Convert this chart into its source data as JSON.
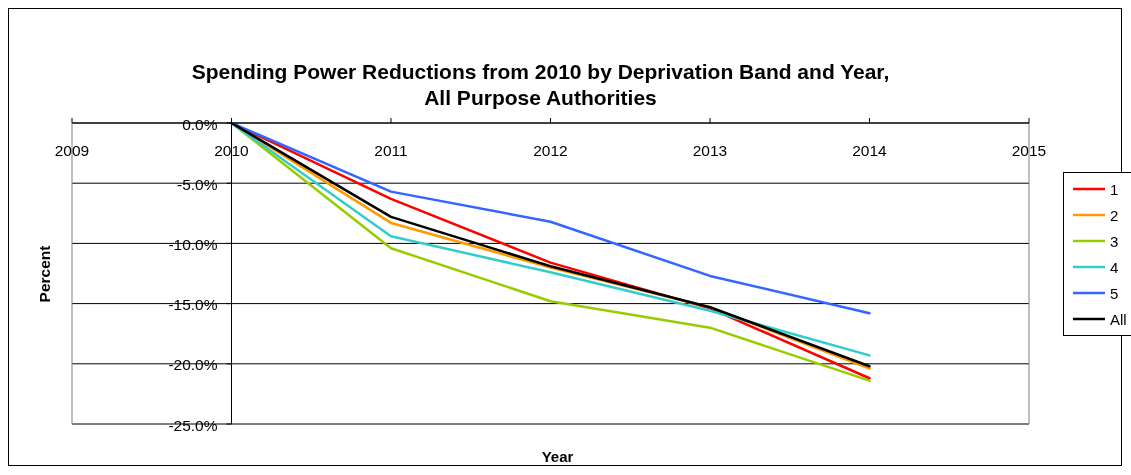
{
  "chart_data": {
    "type": "line",
    "title": "Spending Power Reductions from 2010 by Deprivation Band and Year, All Purpose Authorities",
    "xlabel": "Year",
    "ylabel": "Percent",
    "x": [
      2010,
      2011,
      2012,
      2013,
      2014
    ],
    "xlim": [
      2009,
      2015
    ],
    "xticks": [
      2009,
      2010,
      2011,
      2012,
      2013,
      2014,
      2015
    ],
    "ylim": [
      -25,
      0
    ],
    "yticks": [
      {
        "value": -25,
        "label": "-25.0%"
      },
      {
        "value": -20,
        "label": "-20.0%"
      },
      {
        "value": -15,
        "label": "-15.0%"
      },
      {
        "value": -10,
        "label": "-10.0%"
      },
      {
        "value": -5,
        "label": "-5.0%"
      },
      {
        "value": 0,
        "label": "0.0%"
      }
    ],
    "grid": "y",
    "legend": "right",
    "series": [
      {
        "name": "1",
        "color": "#ff0000",
        "values": [
          0,
          -6.3,
          -11.6,
          -15.4,
          -21.2
        ]
      },
      {
        "name": "2",
        "color": "#ff9900",
        "values": [
          0,
          -8.3,
          -12.0,
          -15.3,
          -20.4
        ]
      },
      {
        "name": "3",
        "color": "#99cc00",
        "values": [
          0,
          -10.4,
          -14.8,
          -17.0,
          -21.4
        ]
      },
      {
        "name": "4",
        "color": "#33cccc",
        "values": [
          0,
          -9.4,
          -12.4,
          -15.6,
          -19.3
        ]
      },
      {
        "name": "5",
        "color": "#3366ff",
        "values": [
          0,
          -5.7,
          -8.2,
          -12.7,
          -15.8
        ]
      },
      {
        "name": "All",
        "color": "#000000",
        "values": [
          0,
          -7.8,
          -11.9,
          -15.3,
          -20.2
        ]
      }
    ]
  }
}
